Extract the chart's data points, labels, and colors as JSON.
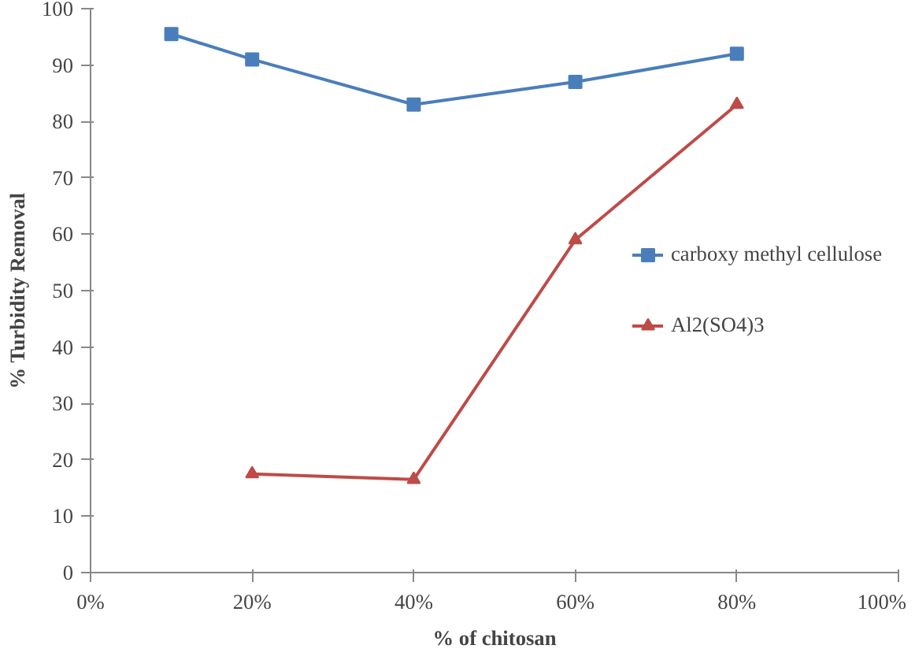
{
  "chart_data": {
    "type": "line",
    "xlabel": "% of chitosan",
    "ylabel": "% Turbidity Removal",
    "xlim": [
      0,
      100
    ],
    "xticks": [
      {
        "value": 0,
        "label": "0%"
      },
      {
        "value": 20,
        "label": "20%"
      },
      {
        "value": 40,
        "label": "40%"
      },
      {
        "value": 60,
        "label": "60%"
      },
      {
        "value": 80,
        "label": "80%"
      },
      {
        "value": 100,
        "label": "100%"
      }
    ],
    "ylim": [
      0,
      100
    ],
    "yticks": [
      0,
      10,
      20,
      30,
      40,
      50,
      60,
      70,
      80,
      90,
      100
    ],
    "grid": false,
    "legend": "right",
    "series": [
      {
        "name": "carboxy methyl cellulose",
        "color": "#4a7ebb",
        "marker": "square",
        "x": [
          10,
          20,
          40,
          60,
          80
        ],
        "values": [
          95.5,
          91,
          83,
          87,
          92
        ]
      },
      {
        "name": "Al2(SO4)3",
        "color": "#be4b48",
        "marker": "triangle",
        "x": [
          20,
          40,
          60,
          80
        ],
        "values": [
          17.5,
          16.5,
          59,
          83
        ]
      }
    ]
  }
}
